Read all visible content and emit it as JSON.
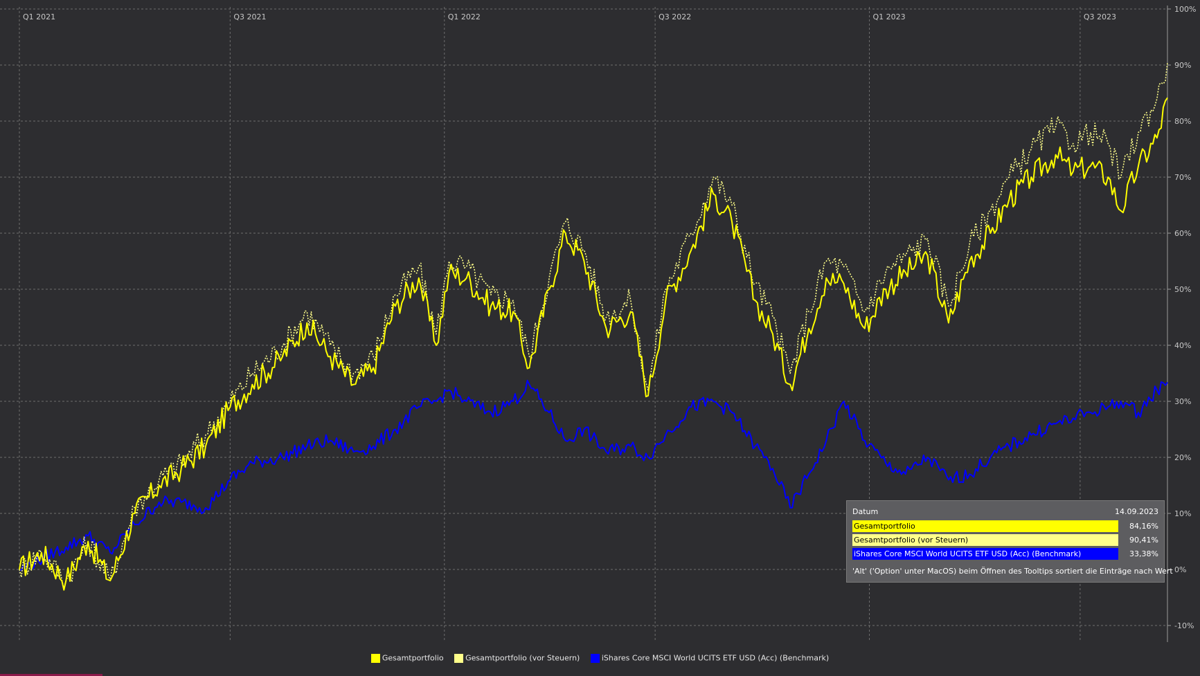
{
  "chart_data": {
    "type": "line",
    "x_ticks": [
      "Q1 2021",
      "Q3 2021",
      "Q1 2022",
      "Q3 2022",
      "Q1 2023",
      "Q3 2023"
    ],
    "y_ticks": [
      "100%",
      "90%",
      "80%",
      "70%",
      "60%",
      "50%",
      "40%",
      "30%",
      "20%",
      "10%",
      "0%",
      "-10%"
    ],
    "ylim": [
      -10,
      100
    ],
    "grid": true,
    "legend_position": "bottom",
    "series": [
      {
        "name": "Gesamtportfolio",
        "color": "#ffff00",
        "style": "solid",
        "points": [
          [
            "2021-01-01",
            0
          ],
          [
            "2021-01-20",
            3
          ],
          [
            "2021-02-10",
            -2
          ],
          [
            "2021-03-01",
            5
          ],
          [
            "2021-03-20",
            -2
          ],
          [
            "2021-04-10",
            10
          ],
          [
            "2021-05-01",
            15
          ],
          [
            "2021-05-20",
            18
          ],
          [
            "2021-06-10",
            22
          ],
          [
            "2021-07-01",
            29
          ],
          [
            "2021-07-20",
            33
          ],
          [
            "2021-08-15",
            38
          ],
          [
            "2021-09-05",
            44
          ],
          [
            "2021-09-25",
            38
          ],
          [
            "2021-10-15",
            33
          ],
          [
            "2021-11-01",
            36
          ],
          [
            "2021-11-20",
            47
          ],
          [
            "2021-12-10",
            52
          ],
          [
            "2021-12-25",
            40
          ],
          [
            "2022-01-05",
            53
          ],
          [
            "2022-01-20",
            52
          ],
          [
            "2022-02-10",
            47
          ],
          [
            "2022-03-01",
            46
          ],
          [
            "2022-03-15",
            36
          ],
          [
            "2022-04-01",
            50
          ],
          [
            "2022-04-15",
            60
          ],
          [
            "2022-05-01",
            55
          ],
          [
            "2022-05-20",
            43
          ],
          [
            "2022-06-10",
            46
          ],
          [
            "2022-06-25",
            31
          ],
          [
            "2022-07-10",
            48
          ],
          [
            "2022-08-01",
            57
          ],
          [
            "2022-08-20",
            67
          ],
          [
            "2022-09-05",
            62
          ],
          [
            "2022-09-25",
            48
          ],
          [
            "2022-10-10",
            42
          ],
          [
            "2022-10-25",
            33
          ],
          [
            "2022-11-10",
            43
          ],
          [
            "2022-11-25",
            52
          ],
          [
            "2022-12-10",
            51
          ],
          [
            "2022-12-28",
            43
          ],
          [
            "2023-01-15",
            50
          ],
          [
            "2023-02-01",
            53
          ],
          [
            "2023-02-20",
            56
          ],
          [
            "2023-03-10",
            44
          ],
          [
            "2023-03-28",
            55
          ],
          [
            "2023-04-15",
            60
          ],
          [
            "2023-05-01",
            66
          ],
          [
            "2023-05-20",
            70
          ],
          [
            "2023-06-10",
            74
          ],
          [
            "2023-06-25",
            71
          ],
          [
            "2023-07-10",
            72
          ],
          [
            "2023-07-25",
            70
          ],
          [
            "2023-08-05",
            64
          ],
          [
            "2023-08-20",
            72
          ],
          [
            "2023-09-05",
            77
          ],
          [
            "2023-09-14",
            84.16
          ]
        ]
      },
      {
        "name": "Gesamtportfolio (vor Steuern)",
        "color": "#ffff8a",
        "style": "dotted",
        "points": [
          [
            "2021-01-01",
            0
          ],
          [
            "2021-01-20",
            3
          ],
          [
            "2021-02-10",
            -2
          ],
          [
            "2021-03-01",
            5
          ],
          [
            "2021-03-20",
            -2
          ],
          [
            "2021-04-10",
            11
          ],
          [
            "2021-05-01",
            16
          ],
          [
            "2021-05-20",
            19
          ],
          [
            "2021-06-10",
            24
          ],
          [
            "2021-07-01",
            30
          ],
          [
            "2021-07-20",
            35
          ],
          [
            "2021-08-15",
            40
          ],
          [
            "2021-09-05",
            46
          ],
          [
            "2021-09-25",
            40
          ],
          [
            "2021-10-15",
            35
          ],
          [
            "2021-11-01",
            38
          ],
          [
            "2021-11-20",
            49
          ],
          [
            "2021-12-10",
            54
          ],
          [
            "2021-12-25",
            42
          ],
          [
            "2022-01-05",
            55
          ],
          [
            "2022-01-20",
            54
          ],
          [
            "2022-02-10",
            49
          ],
          [
            "2022-03-01",
            48
          ],
          [
            "2022-03-15",
            38
          ],
          [
            "2022-04-01",
            52
          ],
          [
            "2022-04-15",
            62
          ],
          [
            "2022-05-01",
            57
          ],
          [
            "2022-05-20",
            45
          ],
          [
            "2022-06-10",
            48
          ],
          [
            "2022-06-25",
            32
          ],
          [
            "2022-07-10",
            50
          ],
          [
            "2022-08-01",
            60
          ],
          [
            "2022-08-20",
            70
          ],
          [
            "2022-09-05",
            65
          ],
          [
            "2022-09-25",
            51
          ],
          [
            "2022-10-10",
            45
          ],
          [
            "2022-10-25",
            35
          ],
          [
            "2022-11-10",
            46
          ],
          [
            "2022-11-25",
            55
          ],
          [
            "2022-12-10",
            54
          ],
          [
            "2022-12-28",
            46
          ],
          [
            "2023-01-15",
            53
          ],
          [
            "2023-02-01",
            56
          ],
          [
            "2023-02-20",
            59
          ],
          [
            "2023-03-10",
            47
          ],
          [
            "2023-03-28",
            58
          ],
          [
            "2023-04-15",
            64
          ],
          [
            "2023-05-01",
            70
          ],
          [
            "2023-05-20",
            75
          ],
          [
            "2023-06-10",
            79
          ],
          [
            "2023-06-25",
            76
          ],
          [
            "2023-07-10",
            78
          ],
          [
            "2023-07-25",
            76
          ],
          [
            "2023-08-05",
            70
          ],
          [
            "2023-08-20",
            78
          ],
          [
            "2023-09-05",
            84
          ],
          [
            "2023-09-14",
            90.41
          ]
        ]
      },
      {
        "name": "iShares Core MSCI World UCITS ETF USD (Acc) (Benchmark)",
        "color": "#0000ff",
        "style": "solid",
        "points": [
          [
            "2021-01-01",
            0
          ],
          [
            "2021-02-10",
            4
          ],
          [
            "2021-03-01",
            6
          ],
          [
            "2021-03-20",
            3
          ],
          [
            "2021-04-10",
            8
          ],
          [
            "2021-05-01",
            12
          ],
          [
            "2021-05-20",
            12
          ],
          [
            "2021-06-10",
            11
          ],
          [
            "2021-07-01",
            16
          ],
          [
            "2021-07-20",
            19
          ],
          [
            "2021-08-15",
            20
          ],
          [
            "2021-09-05",
            22
          ],
          [
            "2021-09-25",
            23
          ],
          [
            "2021-10-15",
            21
          ],
          [
            "2021-11-01",
            22
          ],
          [
            "2021-11-20",
            25
          ],
          [
            "2021-12-10",
            29
          ],
          [
            "2021-12-25",
            30
          ],
          [
            "2022-01-05",
            32
          ],
          [
            "2022-01-20",
            30
          ],
          [
            "2022-02-10",
            28
          ],
          [
            "2022-03-01",
            30
          ],
          [
            "2022-03-15",
            33
          ],
          [
            "2022-04-01",
            28
          ],
          [
            "2022-04-15",
            23
          ],
          [
            "2022-05-01",
            25
          ],
          [
            "2022-05-20",
            21
          ],
          [
            "2022-06-10",
            22
          ],
          [
            "2022-06-25",
            20
          ],
          [
            "2022-07-10",
            24
          ],
          [
            "2022-08-01",
            29
          ],
          [
            "2022-08-20",
            30
          ],
          [
            "2022-09-05",
            28
          ],
          [
            "2022-09-25",
            22
          ],
          [
            "2022-10-10",
            18
          ],
          [
            "2022-10-25",
            11
          ],
          [
            "2022-11-10",
            17
          ],
          [
            "2022-11-25",
            23
          ],
          [
            "2022-12-10",
            30
          ],
          [
            "2022-12-28",
            23
          ],
          [
            "2023-01-15",
            19
          ],
          [
            "2023-02-01",
            17
          ],
          [
            "2023-02-20",
            20
          ],
          [
            "2023-03-10",
            16
          ],
          [
            "2023-03-28",
            17
          ],
          [
            "2023-04-15",
            20
          ],
          [
            "2023-05-01",
            22
          ],
          [
            "2023-05-20",
            24
          ],
          [
            "2023-06-10",
            26
          ],
          [
            "2023-06-25",
            27
          ],
          [
            "2023-07-10",
            28
          ],
          [
            "2023-07-25",
            29
          ],
          [
            "2023-08-05",
            30
          ],
          [
            "2023-08-20",
            28
          ],
          [
            "2023-09-05",
            32
          ],
          [
            "2023-09-14",
            33.38
          ]
        ]
      }
    ]
  },
  "tooltip": {
    "header_label": "Datum",
    "header_value": "14.09.2023",
    "rows": [
      {
        "label": "Gesamtportfolio",
        "value": "84,16%",
        "bg": "#ffff00",
        "fg": "#000000"
      },
      {
        "label": "Gesamtportfolio (vor Steuern)",
        "value": "90,41%",
        "bg": "#ffff8a",
        "fg": "#000000"
      },
      {
        "label": "iShares Core MSCI World UCITS ETF USD (Acc) (Benchmark)",
        "value": "33,38%",
        "bg": "#0000ff",
        "fg": "#ffffff"
      }
    ],
    "hint": "'Alt' ('Option' unter MacOS) beim Öffnen des Tooltips sortiert die Einträge nach Wert"
  },
  "legend": {
    "items": [
      {
        "label": "Gesamtportfolio",
        "color": "#ffff00"
      },
      {
        "label": "Gesamtportfolio (vor Steuern)",
        "color": "#ffff8a"
      },
      {
        "label": "iShares Core MSCI World UCITS ETF USD (Acc) (Benchmark)",
        "color": "#0000ff"
      }
    ]
  }
}
